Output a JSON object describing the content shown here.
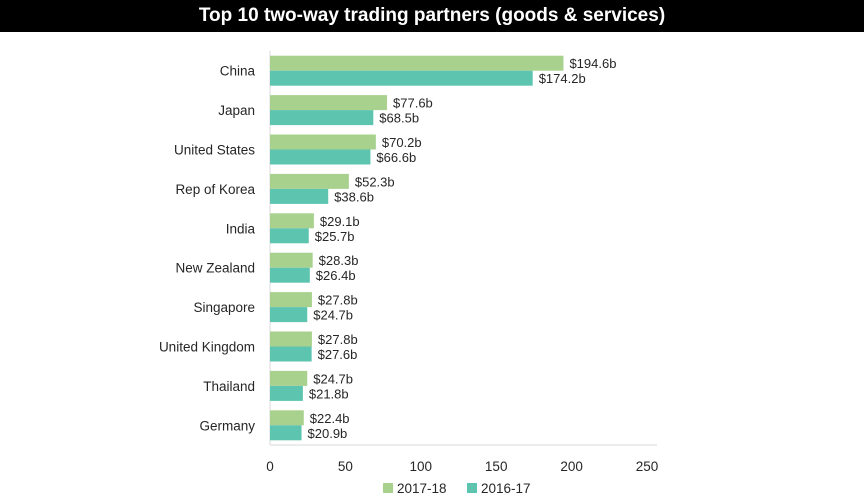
{
  "chart_data": {
    "type": "bar",
    "orientation": "horizontal",
    "title": "Top 10 two-way trading partners (goods & services)",
    "xlabel": "",
    "ylabel": "",
    "categories": [
      "China",
      "Japan",
      "United States",
      "Rep of Korea",
      "India",
      "New Zealand",
      "Singapore",
      "United Kingdom",
      "Thailand",
      "Germany"
    ],
    "series": [
      {
        "name": "2017-18",
        "color": "#a9d18e",
        "values": [
          194.6,
          77.6,
          70.2,
          52.3,
          29.1,
          28.3,
          27.8,
          27.8,
          24.7,
          22.4
        ],
        "labels": [
          "$194.6b",
          "$77.6b",
          "$70.2b",
          "$52.3b",
          "$29.1b",
          "$28.3b",
          "$27.8b",
          "$27.8b",
          "$24.7b",
          "$22.4b"
        ]
      },
      {
        "name": "2016-17",
        "color": "#5dc4b0",
        "values": [
          174.2,
          68.5,
          66.6,
          38.6,
          25.7,
          26.4,
          24.7,
          27.6,
          21.8,
          20.9
        ],
        "labels": [
          "$174.2b",
          "$68.5b",
          "$66.6b",
          "$38.6b",
          "$25.7b",
          "$26.4b",
          "$24.7b",
          "$27.6b",
          "$21.8b",
          "$20.9b"
        ]
      }
    ],
    "xlim": [
      0,
      250
    ],
    "xticks": [
      0,
      50,
      100,
      150,
      200,
      250
    ],
    "xtick_labels": [
      "0",
      "50",
      "100",
      "150",
      "200",
      "250"
    ],
    "grid": false,
    "legend_position": "bottom"
  }
}
